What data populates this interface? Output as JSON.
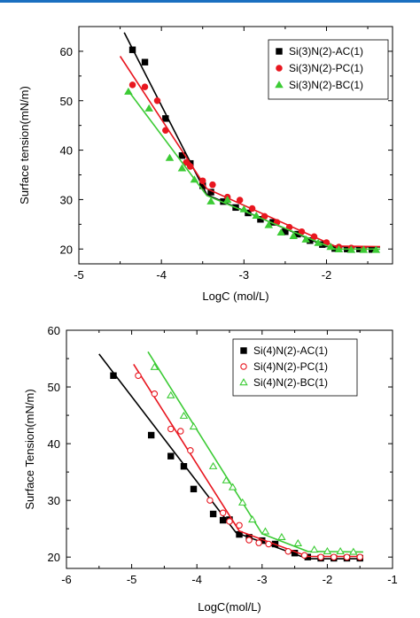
{
  "chart_data": [
    {
      "type": "scatter",
      "xlabel": "LogC (mol/L)",
      "ylabel": "Surface tension(mN/m)",
      "xlim": [
        -5,
        -1.2
      ],
      "ylim": [
        17,
        65
      ],
      "xticks": [
        -5,
        -4,
        -3,
        -2
      ],
      "yticks": [
        20,
        30,
        40,
        50,
        60
      ],
      "legend_position": "top-right",
      "series": [
        {
          "name": "Si(3)N(2)-AC(1)",
          "marker": "square-filled",
          "color": "#000000",
          "x": [
            -4.35,
            -4.2,
            -3.95,
            -3.75,
            -3.65,
            -3.5,
            -3.4,
            -3.25,
            -3.1,
            -2.95,
            -2.8,
            -2.65,
            -2.5,
            -2.35,
            -2.2,
            -2.05,
            -1.9,
            -1.75,
            -1.6,
            -1.45
          ],
          "y": [
            60.3,
            57.8,
            46.4,
            38.9,
            37.3,
            32.8,
            31.5,
            29.6,
            28.4,
            27.3,
            26.0,
            25.4,
            23.5,
            23.0,
            21.7,
            20.9,
            20.1,
            20.0,
            20.0,
            19.9
          ],
          "fit": [
            [
              -4.45,
              63.8
            ],
            [
              -3.45,
              31.0
            ],
            [
              -2.0,
              20.5
            ],
            [
              -1.35,
              20.4
            ]
          ]
        },
        {
          "name": "Si(3)N(2)-PC(1)",
          "marker": "circle-filled",
          "color": "#e8161f",
          "x": [
            -4.35,
            -4.2,
            -4.05,
            -3.95,
            -3.7,
            -3.65,
            -3.5,
            -3.38,
            -3.2,
            -3.05,
            -2.9,
            -2.75,
            -2.6,
            -2.45,
            -2.3,
            -2.15,
            -2.0,
            -1.85,
            -1.7,
            -1.55
          ],
          "y": [
            53.2,
            52.8,
            50.0,
            44.0,
            37.5,
            36.7,
            33.8,
            33.0,
            30.5,
            29.9,
            28.2,
            26.6,
            25.4,
            24.4,
            23.5,
            22.5,
            21.3,
            20.4,
            20.2,
            20.0
          ],
          "fit": [
            [
              -4.5,
              59.0
            ],
            [
              -3.45,
              32.2
            ],
            [
              -1.9,
              20.6
            ],
            [
              -1.35,
              20.5
            ]
          ]
        },
        {
          "name": "Si(3)N(2)-BC(1)",
          "marker": "triangle-filled",
          "color": "#3ccb35",
          "x": [
            -4.4,
            -4.15,
            -3.9,
            -3.75,
            -3.6,
            -3.4,
            -3.2,
            -3.0,
            -2.85,
            -2.7,
            -2.55,
            -2.4,
            -2.25,
            -2.1,
            -1.95,
            -1.85,
            -1.7,
            -1.55,
            -1.4
          ],
          "y": [
            51.8,
            48.4,
            38.4,
            36.3,
            34.0,
            29.6,
            29.9,
            28.0,
            26.7,
            24.8,
            23.3,
            22.6,
            21.9,
            21.2,
            20.4,
            19.9,
            19.8,
            19.8,
            19.8
          ],
          "fit": [
            [
              -4.4,
              52.0
            ],
            [
              -3.45,
              30.8
            ],
            [
              -1.9,
              20.0
            ],
            [
              -1.35,
              20.0
            ]
          ]
        }
      ]
    },
    {
      "type": "scatter",
      "xlabel": "LogC(mol/L)",
      "ylabel": "Surface Tension(mN/m)",
      "xlim": [
        -6,
        -1
      ],
      "ylim": [
        18,
        60
      ],
      "xticks": [
        -6,
        -5,
        -4,
        -3,
        -2,
        -1
      ],
      "yticks": [
        20,
        30,
        40,
        50,
        60
      ],
      "legend_position": "top-right",
      "series": [
        {
          "name": "Si(4)N(2)-AC(1)",
          "marker": "square-filled",
          "color": "#000000",
          "x": [
            -5.28,
            -4.7,
            -4.4,
            -4.2,
            -4.05,
            -3.75,
            -3.6,
            -3.5,
            -3.35,
            -3.2,
            -3.0,
            -2.8,
            -2.5,
            -2.3,
            -2.1,
            -1.9,
            -1.7,
            -1.5
          ],
          "y": [
            52.0,
            41.5,
            37.8,
            36.0,
            32.0,
            27.6,
            26.5,
            26.6,
            24.0,
            23.5,
            22.9,
            22.3,
            20.7,
            20.0,
            19.8,
            19.8,
            19.8,
            19.8
          ],
          "fit": [
            [
              -5.5,
              55.8
            ],
            [
              -3.4,
              24.3
            ],
            [
              -2.3,
              19.7
            ],
            [
              -1.45,
              19.7
            ]
          ]
        },
        {
          "name": "Si(4)N(2)-PC(1)",
          "marker": "circle-open",
          "color": "#e8161f",
          "x": [
            -4.9,
            -4.65,
            -4.4,
            -4.25,
            -4.1,
            -3.8,
            -3.6,
            -3.5,
            -3.35,
            -3.2,
            -3.05,
            -2.9,
            -2.6,
            -2.35,
            -2.1,
            -1.9,
            -1.7,
            -1.5
          ],
          "y": [
            52.0,
            48.8,
            42.6,
            42.2,
            38.8,
            30.0,
            27.8,
            26.3,
            25.6,
            23.0,
            22.5,
            22.3,
            21.0,
            20.3,
            20.0,
            20.0,
            20.0,
            20.0
          ],
          "fit": [
            [
              -4.97,
              54.0
            ],
            [
              -3.35,
              24.6
            ],
            [
              -2.3,
              20.1
            ],
            [
              -1.45,
              20.1
            ]
          ]
        },
        {
          "name": "Si(4)N(2)-BC(1)",
          "marker": "triangle-open",
          "color": "#3ccb35",
          "x": [
            -4.65,
            -4.4,
            -4.2,
            -4.05,
            -3.75,
            -3.55,
            -3.45,
            -3.3,
            -3.15,
            -2.95,
            -2.7,
            -2.45,
            -2.2,
            -2.0,
            -1.8,
            -1.6
          ],
          "y": [
            53.5,
            48.5,
            44.9,
            43.0,
            36.0,
            33.5,
            32.3,
            29.6,
            26.6,
            24.5,
            23.5,
            22.4,
            21.3,
            21.0,
            21.0,
            20.9
          ],
          "fit": [
            [
              -4.75,
              56.2
            ],
            [
              -3.0,
              24.1
            ],
            [
              -2.3,
              21.0
            ],
            [
              -1.45,
              20.9
            ]
          ]
        }
      ]
    }
  ]
}
